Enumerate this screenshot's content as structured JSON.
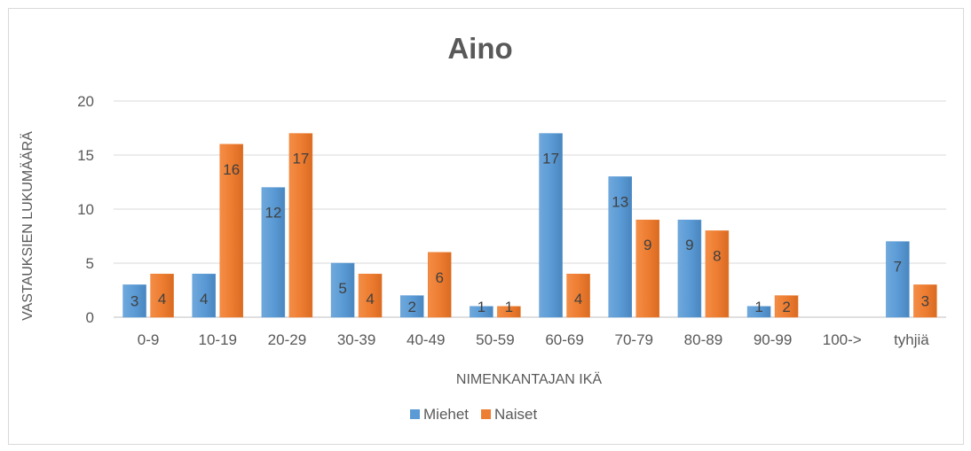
{
  "chart_data": {
    "type": "bar",
    "title": "Aino",
    "xlabel": "NIMENKANTAJAN IKÄ",
    "ylabel": "VASTAUKSIEN LUKUMÄÄRÄ",
    "ylim": [
      0,
      20
    ],
    "yticks": [
      0,
      5,
      10,
      15,
      20
    ],
    "grid": true,
    "legend_position": "bottom",
    "categories": [
      "0-9",
      "10-19",
      "20-29",
      "30-39",
      "40-49",
      "50-59",
      "60-69",
      "70-79",
      "80-89",
      "90-99",
      "100->",
      "tyhjiä"
    ],
    "series": [
      {
        "name": "Miehet",
        "color": "#5b9bd5",
        "values": [
          3,
          4,
          12,
          5,
          2,
          1,
          17,
          13,
          9,
          1,
          null,
          7
        ]
      },
      {
        "name": "Naiset",
        "color": "#ed7d31",
        "values": [
          4,
          16,
          17,
          4,
          6,
          1,
          4,
          9,
          8,
          2,
          null,
          3
        ]
      }
    ]
  }
}
